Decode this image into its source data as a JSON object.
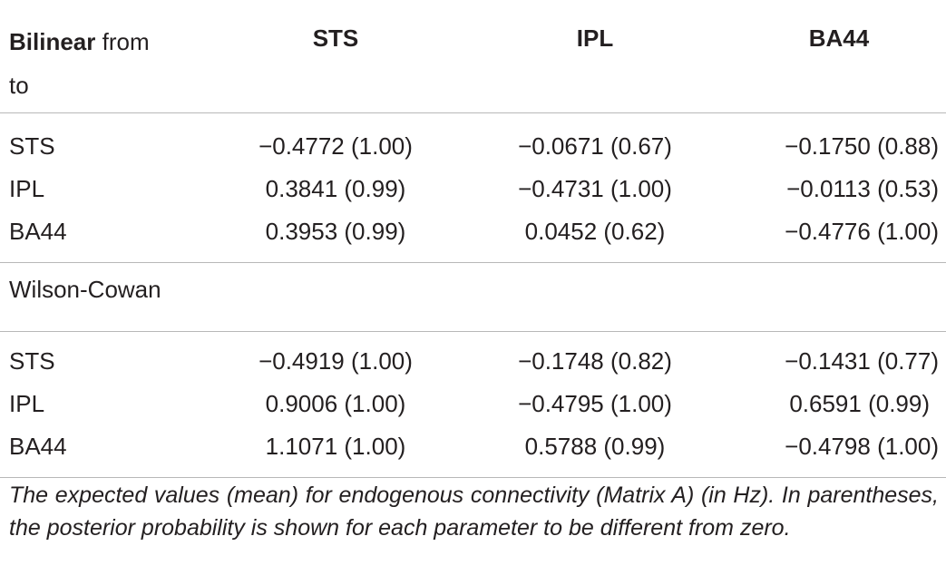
{
  "table": {
    "corner_bold": "Bilinear",
    "corner_rest_line1": " from",
    "corner_line2": "to",
    "columns": [
      "STS",
      "IPL",
      "BA44"
    ],
    "bilinear_rows": [
      {
        "label": "STS",
        "cells": [
          "−0.4772 (1.00)",
          "−0.0671 (0.67)",
          "−0.1750 (0.88)"
        ]
      },
      {
        "label": "IPL",
        "cells": [
          "0.3841 (0.99)",
          "−0.4731 (1.00)",
          "−0.0113 (0.53)"
        ]
      },
      {
        "label": "BA44",
        "cells": [
          "0.3953 (0.99)",
          "0.0452 (0.62)",
          "−0.4776 (1.00)"
        ]
      }
    ],
    "section2_label": "Wilson-Cowan",
    "wilson_rows": [
      {
        "label": "STS",
        "cells": [
          "−0.4919 (1.00)",
          "−0.1748 (0.82)",
          "−0.1431 (0.77)"
        ]
      },
      {
        "label": "IPL",
        "cells": [
          "0.9006 (1.00)",
          "−0.4795 (1.00)",
          "0.6591 (0.99)"
        ]
      },
      {
        "label": "BA44",
        "cells": [
          "1.1071 (1.00)",
          "0.5788 (0.99)",
          "−0.4798 (1.00)"
        ]
      }
    ]
  },
  "caption": "The expected values (mean) for endogenous connectivity (Matrix A) (in Hz). In parentheses, the posterior probability is shown for each parameter to be different from zero."
}
